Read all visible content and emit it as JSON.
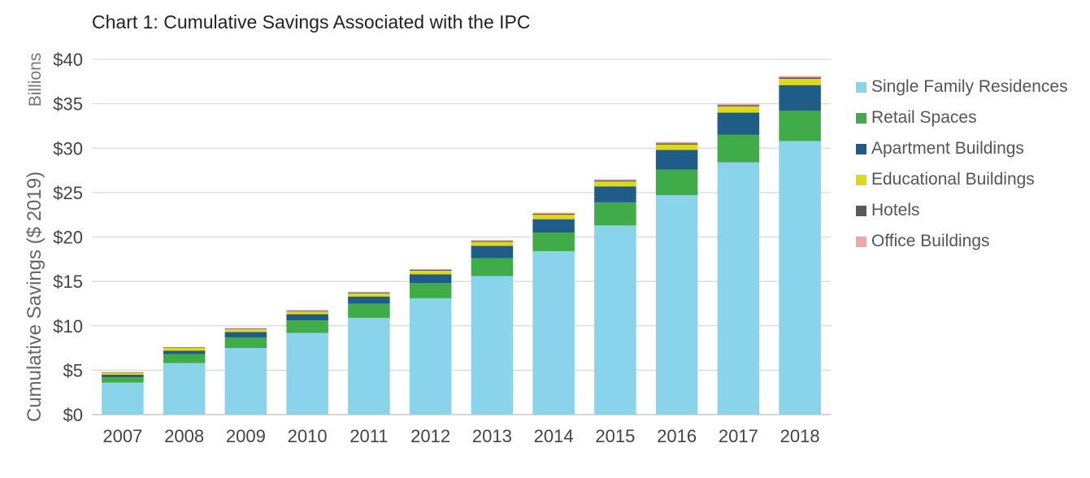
{
  "chart_data": {
    "type": "bar",
    "stacked": true,
    "title": "Chart 1: Cumulative Savings Associated with the IPC",
    "ylabel": "Cumulative Savings ($ 2019)",
    "units_label": "Billions",
    "ylim": [
      0,
      40
    ],
    "yticks": [
      0,
      5,
      10,
      15,
      20,
      25,
      30,
      35,
      40
    ],
    "ytick_labels": [
      "$0",
      "$5",
      "$10",
      "$15",
      "$20",
      "$25",
      "$30",
      "$35",
      "$40"
    ],
    "categories": [
      "2007",
      "2008",
      "2009",
      "2010",
      "2011",
      "2012",
      "2013",
      "2014",
      "2015",
      "2016",
      "2017",
      "2018"
    ],
    "grid": true,
    "legend_position": "right",
    "series": [
      {
        "name": "Single Family Residences",
        "color": "#89d4ea",
        "values": [
          3.6,
          5.8,
          7.5,
          9.2,
          10.9,
          13.1,
          15.6,
          18.4,
          21.3,
          24.7,
          28.4,
          30.8
        ]
      },
      {
        "name": "Retail Spaces",
        "color": "#3fac49",
        "values": [
          0.6,
          1.0,
          1.2,
          1.4,
          1.6,
          1.7,
          2.0,
          2.1,
          2.6,
          2.9,
          3.1,
          3.4
        ]
      },
      {
        "name": "Apartment Buildings",
        "color": "#1f5c88",
        "values": [
          0.3,
          0.4,
          0.6,
          0.7,
          0.8,
          1.0,
          1.4,
          1.5,
          1.8,
          2.2,
          2.5,
          2.9
        ]
      },
      {
        "name": "Educational Buildings",
        "color": "#e0d91a",
        "values": [
          0.2,
          0.3,
          0.3,
          0.3,
          0.35,
          0.4,
          0.45,
          0.5,
          0.55,
          0.6,
          0.7,
          0.7
        ]
      },
      {
        "name": "Hotels",
        "color": "#5a5a5a",
        "values": [
          0.05,
          0.05,
          0.07,
          0.08,
          0.09,
          0.1,
          0.1,
          0.12,
          0.13,
          0.15,
          0.15,
          0.17
        ]
      },
      {
        "name": "Office Buildings",
        "color": "#f1a79f",
        "values": [
          0.05,
          0.05,
          0.08,
          0.1,
          0.1,
          0.1,
          0.1,
          0.12,
          0.12,
          0.15,
          0.15,
          0.15
        ]
      }
    ]
  }
}
